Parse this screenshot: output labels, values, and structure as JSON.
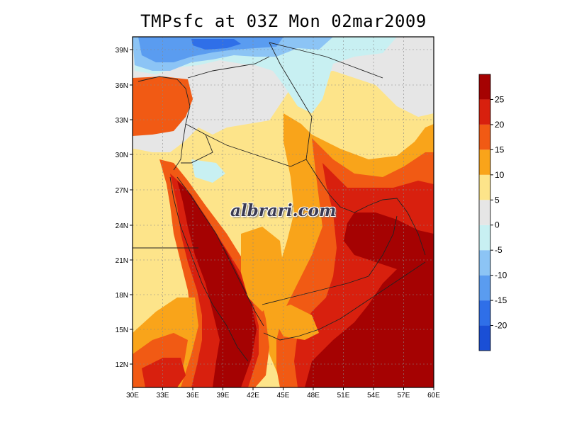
{
  "title": "TMPsfc at 03Z Mon 02mar2009",
  "watermark": "albrari.com",
  "lon_labels": [
    "30E",
    "33E",
    "36E",
    "39E",
    "42E",
    "45E",
    "48E",
    "51E",
    "54E",
    "57E",
    "60E"
  ],
  "lat_labels": [
    "12N",
    "15N",
    "18N",
    "21N",
    "24N",
    "27N",
    "30N",
    "33N",
    "36N",
    "39N"
  ],
  "colorbar": {
    "bins": [
      {
        "color": "#1a4fd6"
      },
      {
        "color": "#2f6fe8"
      },
      {
        "color": "#5a9cf0"
      },
      {
        "color": "#8cc4f5"
      },
      {
        "color": "#c8f0f2"
      },
      {
        "color": "#e6e6e6"
      },
      {
        "color": "#fde48a"
      },
      {
        "color": "#f9a41a"
      },
      {
        "color": "#f15a14"
      },
      {
        "color": "#d8200e"
      },
      {
        "color": "#a50202"
      }
    ],
    "tick_labels": [
      "-20",
      "-15",
      "-10",
      "-5",
      "0",
      "5",
      "10",
      "15",
      "20",
      "25"
    ]
  },
  "colors": {
    "deep_red": "#a50202",
    "red": "#d8200e",
    "orange_red": "#f15a14",
    "orange": "#f9a41a",
    "yellow": "#fde48a",
    "grey": "#e6e6e6",
    "light_cyan": "#c8f0f2",
    "light_blue": "#8cc4f5",
    "blue": "#5a9cf0",
    "mid_blue": "#2f6fe8"
  }
}
